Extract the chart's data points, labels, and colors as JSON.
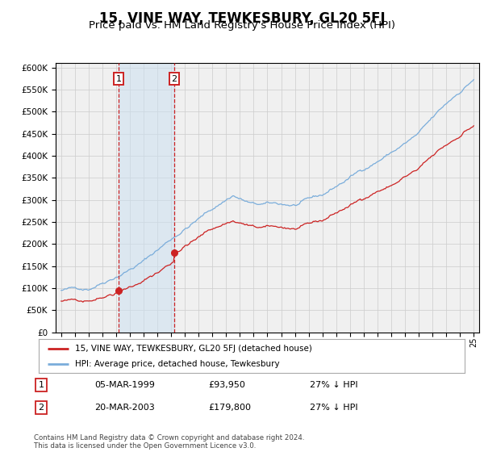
{
  "title": "15, VINE WAY, TEWKESBURY, GL20 5FJ",
  "subtitle": "Price paid vs. HM Land Registry's House Price Index (HPI)",
  "title_fontsize": 12,
  "subtitle_fontsize": 9.5,
  "ylabel_ticks": [
    0,
    50000,
    100000,
    150000,
    200000,
    250000,
    300000,
    350000,
    400000,
    450000,
    500000,
    550000,
    600000
  ],
  "ylim": [
    0,
    610000
  ],
  "xlim_start": 1994.6,
  "xlim_end": 2025.4,
  "hpi_color": "#7aaddb",
  "price_color": "#cc2222",
  "vline1_date": 1999.18,
  "vline2_date": 2003.22,
  "vline_color": "#cc2222",
  "shade_color": "#cce0f0",
  "shade_alpha": 0.55,
  "marker1_x": 1999.18,
  "marker1_y": 93950,
  "marker2_x": 2003.22,
  "marker2_y": 179800,
  "legend_label_price": "15, VINE WAY, TEWKESBURY, GL20 5FJ (detached house)",
  "legend_label_hpi": "HPI: Average price, detached house, Tewkesbury",
  "table_row1_num": "1",
  "table_row1_date": "05-MAR-1999",
  "table_row1_price": "£93,950",
  "table_row1_change": "27% ↓ HPI",
  "table_row2_num": "2",
  "table_row2_date": "20-MAR-2003",
  "table_row2_price": "£179,800",
  "table_row2_change": "27% ↓ HPI",
  "footer": "Contains HM Land Registry data © Crown copyright and database right 2024.\nThis data is licensed under the Open Government Licence v3.0.",
  "bg_color": "#ffffff",
  "grid_color": "#cccccc",
  "plot_bg": "#f0f0f0"
}
